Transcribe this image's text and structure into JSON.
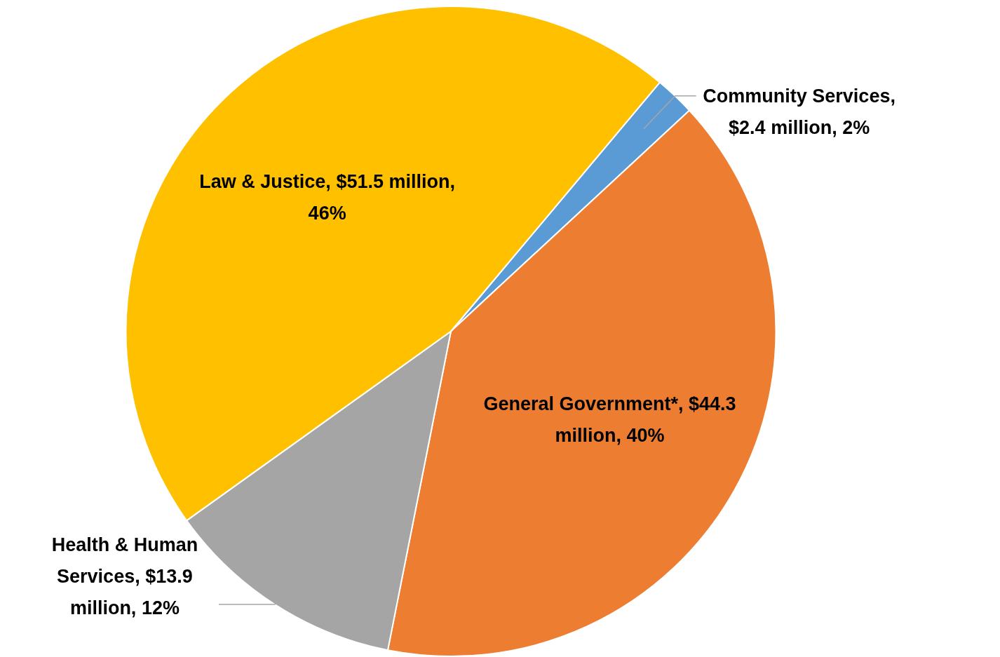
{
  "chart_data": {
    "type": "pie",
    "categories": [
      "Community Services, $2.4 million, 2%",
      "General Government*, $44.3 million, 40%",
      "Health & Human Services, $13.9 million, 12%",
      "Law & Justice, $51.5 million, 46%"
    ],
    "values": [
      2,
      40,
      12,
      46
    ],
    "colors": [
      "#5b9bd5",
      "#ed7d31",
      "#a5a5a5",
      "#ffc000"
    ],
    "legend": false
  }
}
